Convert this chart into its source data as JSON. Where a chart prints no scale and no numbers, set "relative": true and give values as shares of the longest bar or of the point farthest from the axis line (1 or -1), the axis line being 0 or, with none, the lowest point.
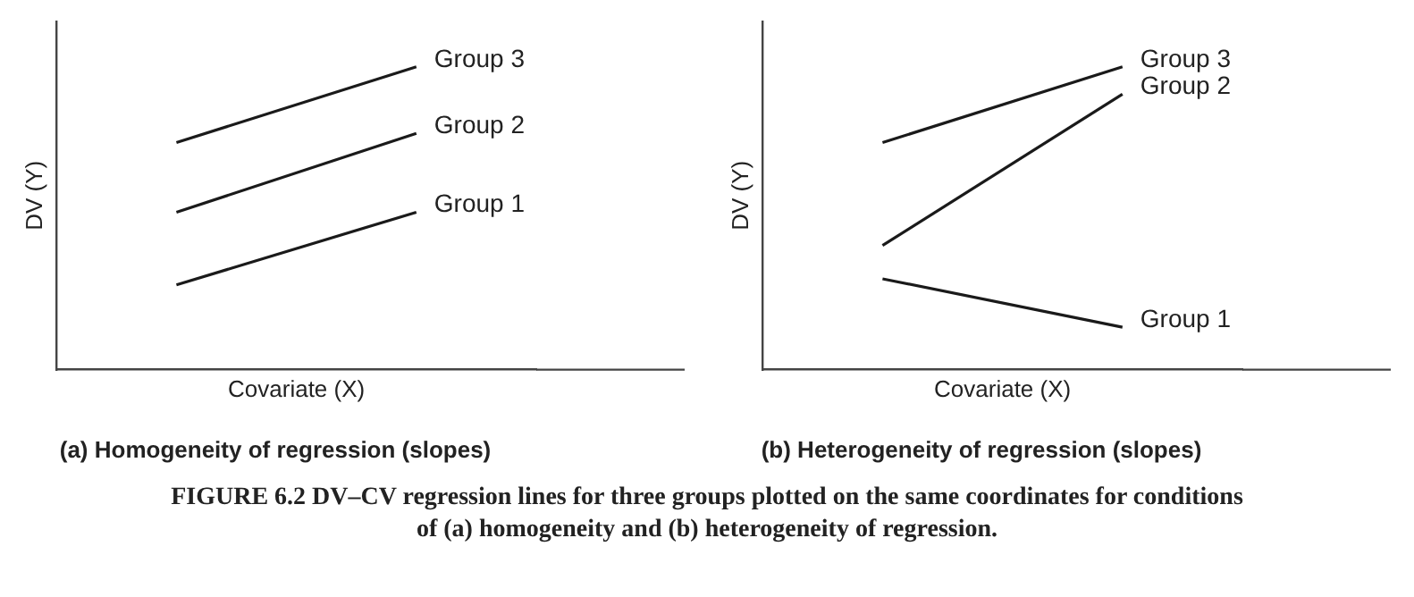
{
  "chart_data": [
    {
      "type": "line",
      "title": "(a) Homogeneity of regression (slopes)",
      "xlabel": "Covariate (X)",
      "ylabel": "DV (Y)",
      "relative": true,
      "legend": false,
      "marker": "none",
      "grid": false,
      "tick_labels": false,
      "categories": [
        null,
        null
      ],
      "series": [
        {
          "name": "Group 3",
          "color": "#1a1a1a",
          "values": [
            0.75,
            1
          ]
        },
        {
          "name": "Group 2",
          "color": "#1a1a1a",
          "values": [
            0.52,
            0.78
          ]
        },
        {
          "name": "Group 1",
          "color": "#1a1a1a",
          "values": [
            0.28,
            0.52
          ]
        }
      ],
      "annotations": [
        "FIGURE 6.2   DV–CV regression lines for three groups plotted on the same coordinates for conditions of (a) homogeneity and (b) heterogeneity of regression."
      ]
    },
    {
      "type": "line",
      "title": "(b) Heterogeneity of regression (slopes)",
      "xlabel": "Covariate (X)",
      "ylabel": "DV (Y)",
      "relative": true,
      "legend": false,
      "marker": "none",
      "grid": false,
      "tick_labels": false,
      "categories": [
        null,
        null
      ],
      "series": [
        {
          "name": "Group 3",
          "color": "#1a1a1a",
          "values": [
            0.75,
            1
          ]
        },
        {
          "name": "Group 2",
          "color": "#1a1a1a",
          "values": [
            0.41,
            0.91
          ]
        },
        {
          "name": "Group 1",
          "color": "#1a1a1a",
          "values": [
            0.3,
            0.14
          ]
        }
      ]
    }
  ]
}
